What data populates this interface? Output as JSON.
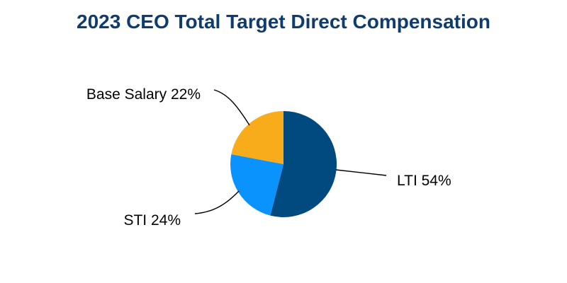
{
  "chart_data": {
    "type": "pie",
    "title": "2023 CEO Total Target Direct Compensation",
    "slices": [
      {
        "label": "LTI",
        "value": 54,
        "display": "LTI 54%",
        "color": "#004a80"
      },
      {
        "label": "STI",
        "value": 24,
        "display": "STI 24%",
        "color": "#0a93fc"
      },
      {
        "label": "Base Salary",
        "value": 22,
        "display": "Base Salary 22%",
        "color": "#f8ac1c"
      }
    ],
    "start": "12 o'clock",
    "direction": "clockwise",
    "legend": "none"
  }
}
